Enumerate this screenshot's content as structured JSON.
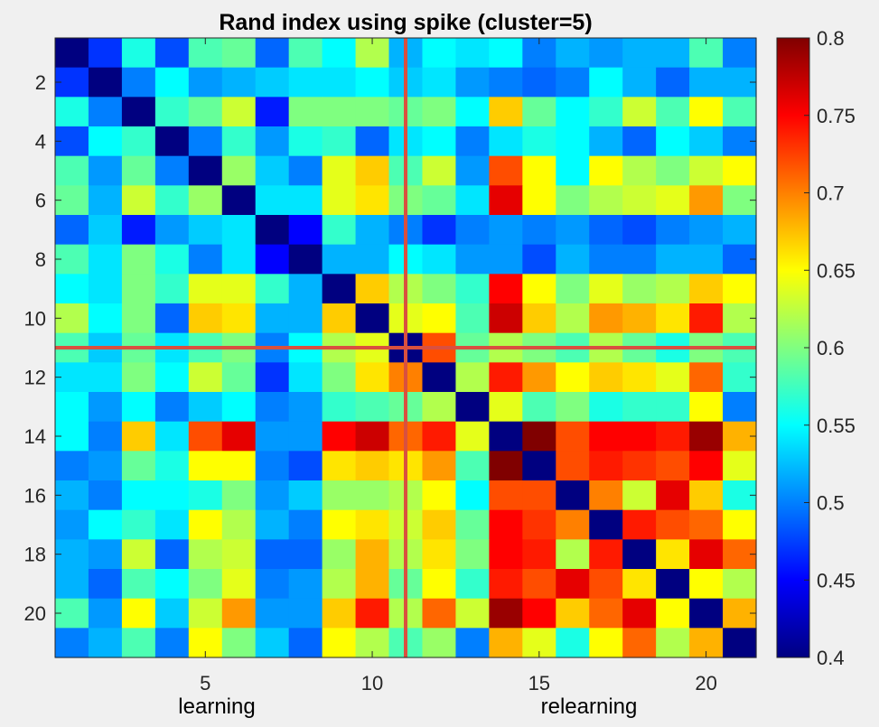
{
  "chart_data": {
    "type": "heatmap",
    "title": "Rand index using spike (cluster=5)",
    "sublabels": [
      "learning",
      "relearning"
    ],
    "xticks": [
      "5",
      "10",
      "15",
      "20"
    ],
    "yticks": [
      "2",
      "4",
      "6",
      "8",
      "10",
      "12",
      "14",
      "16",
      "18",
      "20"
    ],
    "colorbar": {
      "min": 0.4,
      "max": 0.8,
      "colormap": "jet",
      "ticks": [
        "0.4",
        "0.45",
        "0.5",
        "0.55",
        "0.6",
        "0.65",
        "0.7",
        "0.75",
        "0.8"
      ]
    },
    "crosshair": {
      "row": 11,
      "col": 11,
      "color": "#d9503f"
    },
    "xlim": [
      0.5,
      21.5
    ],
    "ylim": [
      0.5,
      21.5
    ],
    "matrix": [
      [
        0.4,
        0.47,
        0.56,
        0.48,
        0.58,
        0.59,
        0.49,
        0.58,
        0.55,
        0.62,
        0.52,
        0.55,
        0.54,
        0.55,
        0.5,
        0.52,
        0.51,
        0.52,
        0.52,
        0.58,
        0.5
      ],
      [
        0.47,
        0.4,
        0.5,
        0.55,
        0.51,
        0.52,
        0.53,
        0.54,
        0.54,
        0.55,
        0.53,
        0.54,
        0.51,
        0.5,
        0.49,
        0.5,
        0.55,
        0.52,
        0.49,
        0.52,
        0.52
      ],
      [
        0.56,
        0.5,
        0.4,
        0.57,
        0.59,
        0.63,
        0.46,
        0.6,
        0.6,
        0.6,
        0.59,
        0.6,
        0.55,
        0.67,
        0.59,
        0.55,
        0.57,
        0.63,
        0.58,
        0.65,
        0.58
      ],
      [
        0.48,
        0.55,
        0.57,
        0.4,
        0.5,
        0.57,
        0.51,
        0.56,
        0.57,
        0.49,
        0.54,
        0.55,
        0.5,
        0.54,
        0.56,
        0.55,
        0.52,
        0.49,
        0.55,
        0.53,
        0.5
      ],
      [
        0.58,
        0.51,
        0.59,
        0.5,
        0.4,
        0.61,
        0.53,
        0.5,
        0.64,
        0.67,
        0.58,
        0.63,
        0.51,
        0.72,
        0.65,
        0.55,
        0.65,
        0.62,
        0.6,
        0.63,
        0.65
      ],
      [
        0.59,
        0.52,
        0.63,
        0.57,
        0.61,
        0.4,
        0.54,
        0.54,
        0.64,
        0.66,
        0.6,
        0.59,
        0.54,
        0.76,
        0.65,
        0.6,
        0.62,
        0.63,
        0.64,
        0.69,
        0.6
      ],
      [
        0.49,
        0.53,
        0.46,
        0.51,
        0.53,
        0.54,
        0.4,
        0.45,
        0.57,
        0.52,
        0.5,
        0.47,
        0.5,
        0.51,
        0.5,
        0.51,
        0.49,
        0.48,
        0.5,
        0.51,
        0.52
      ],
      [
        0.58,
        0.54,
        0.6,
        0.56,
        0.5,
        0.54,
        0.45,
        0.4,
        0.52,
        0.52,
        0.55,
        0.54,
        0.51,
        0.51,
        0.48,
        0.52,
        0.5,
        0.5,
        0.52,
        0.52,
        0.49
      ],
      [
        0.55,
        0.54,
        0.6,
        0.57,
        0.64,
        0.64,
        0.57,
        0.52,
        0.4,
        0.67,
        0.62,
        0.6,
        0.57,
        0.75,
        0.65,
        0.6,
        0.64,
        0.61,
        0.62,
        0.67,
        0.65
      ],
      [
        0.62,
        0.55,
        0.6,
        0.49,
        0.67,
        0.66,
        0.52,
        0.52,
        0.67,
        0.4,
        0.64,
        0.65,
        0.58,
        0.77,
        0.67,
        0.62,
        0.69,
        0.68,
        0.66,
        0.74,
        0.62
      ],
      [
        0.58,
        0.53,
        0.59,
        0.54,
        0.58,
        0.6,
        0.5,
        0.55,
        0.62,
        0.64,
        0.4,
        0.72,
        0.59,
        0.62,
        0.6,
        0.58,
        0.62,
        0.59,
        0.56,
        0.6,
        0.58
      ],
      [
        0.54,
        0.54,
        0.6,
        0.55,
        0.63,
        0.59,
        0.47,
        0.54,
        0.6,
        0.66,
        0.7,
        0.4,
        0.62,
        0.74,
        0.69,
        0.65,
        0.67,
        0.66,
        0.64,
        0.71,
        0.57
      ],
      [
        0.55,
        0.51,
        0.55,
        0.5,
        0.53,
        0.55,
        0.5,
        0.51,
        0.57,
        0.58,
        0.59,
        0.62,
        0.4,
        0.64,
        0.58,
        0.6,
        0.56,
        0.57,
        0.57,
        0.65,
        0.5
      ],
      [
        0.55,
        0.5,
        0.67,
        0.54,
        0.72,
        0.76,
        0.51,
        0.51,
        0.75,
        0.77,
        0.71,
        0.74,
        0.64,
        0.4,
        0.8,
        0.72,
        0.75,
        0.75,
        0.74,
        0.79,
        0.68
      ],
      [
        0.5,
        0.51,
        0.59,
        0.56,
        0.65,
        0.65,
        0.5,
        0.48,
        0.66,
        0.67,
        0.66,
        0.69,
        0.58,
        0.8,
        0.4,
        0.72,
        0.74,
        0.73,
        0.72,
        0.75,
        0.64
      ],
      [
        0.52,
        0.5,
        0.55,
        0.55,
        0.56,
        0.6,
        0.51,
        0.53,
        0.61,
        0.61,
        0.62,
        0.65,
        0.55,
        0.72,
        0.72,
        0.4,
        0.7,
        0.63,
        0.76,
        0.67,
        0.56
      ],
      [
        0.51,
        0.55,
        0.57,
        0.54,
        0.65,
        0.62,
        0.52,
        0.5,
        0.65,
        0.66,
        0.63,
        0.67,
        0.59,
        0.75,
        0.73,
        0.7,
        0.4,
        0.74,
        0.72,
        0.71,
        0.65
      ],
      [
        0.52,
        0.51,
        0.63,
        0.49,
        0.62,
        0.63,
        0.49,
        0.49,
        0.61,
        0.68,
        0.62,
        0.66,
        0.6,
        0.75,
        0.74,
        0.62,
        0.74,
        0.4,
        0.66,
        0.76,
        0.71
      ],
      [
        0.52,
        0.49,
        0.58,
        0.55,
        0.6,
        0.64,
        0.5,
        0.51,
        0.62,
        0.68,
        0.59,
        0.65,
        0.57,
        0.74,
        0.72,
        0.76,
        0.72,
        0.66,
        0.4,
        0.65,
        0.62
      ],
      [
        0.58,
        0.51,
        0.65,
        0.53,
        0.63,
        0.69,
        0.51,
        0.51,
        0.67,
        0.74,
        0.62,
        0.71,
        0.63,
        0.79,
        0.75,
        0.67,
        0.71,
        0.76,
        0.65,
        0.4,
        0.68
      ],
      [
        0.5,
        0.52,
        0.58,
        0.5,
        0.65,
        0.6,
        0.53,
        0.49,
        0.65,
        0.62,
        0.58,
        0.61,
        0.5,
        0.68,
        0.64,
        0.56,
        0.65,
        0.71,
        0.62,
        0.68,
        0.4
      ]
    ]
  }
}
